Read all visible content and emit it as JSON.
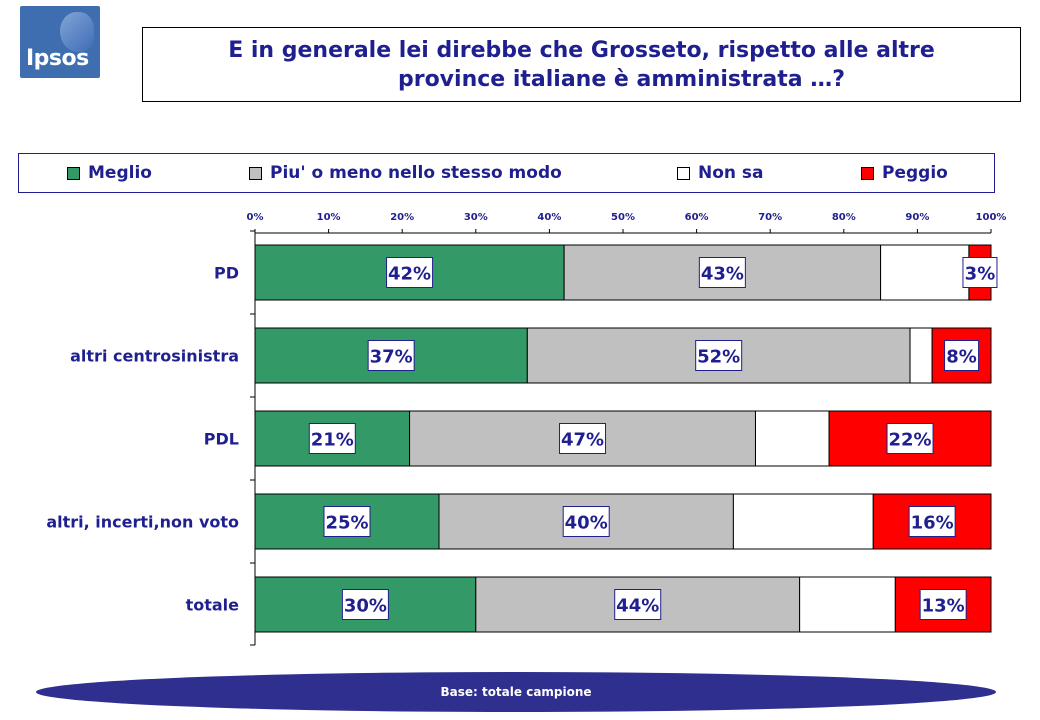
{
  "logo": {
    "text": "Ipsos"
  },
  "title": {
    "line1": "E in generale lei direbbe che Grosseto, rispetto alle altre",
    "line2": "province italiane è amministrata …?"
  },
  "footer": {
    "base": "Base: totale campione"
  },
  "chart_data": {
    "type": "bar",
    "orientation": "horizontal",
    "stacked": true,
    "categories": [
      "PD",
      "altri centrosinistra",
      "PDL",
      "altri, incerti,non voto",
      "totale"
    ],
    "series": [
      {
        "name": "Meglio",
        "color": "#339966",
        "values": [
          42,
          37,
          21,
          25,
          30
        ],
        "labels": [
          "42%",
          "37%",
          "21%",
          "25%",
          "30%"
        ]
      },
      {
        "name": "Piu' o meno nello stesso modo",
        "color": "#c0c0c0",
        "values": [
          43,
          52,
          47,
          40,
          44
        ],
        "labels": [
          "43%",
          "52%",
          "47%",
          "40%",
          "44%"
        ]
      },
      {
        "name": "Non sa",
        "color": "#ffffff",
        "values": [
          12,
          3,
          10,
          19,
          13
        ],
        "labels": [
          "",
          "",
          "",
          "",
          ""
        ]
      },
      {
        "name": "Peggio",
        "color": "#ff0000",
        "values": [
          3,
          8,
          22,
          16,
          13
        ],
        "labels": [
          "3%",
          "8%",
          "22%",
          "16%",
          "13%"
        ]
      }
    ],
    "xlim": [
      0,
      100
    ],
    "xticks": [
      "0%",
      "10%",
      "20%",
      "30%",
      "40%",
      "50%",
      "60%",
      "70%",
      "80%",
      "90%",
      "100%"
    ],
    "legend_position": "top",
    "grid": false
  }
}
